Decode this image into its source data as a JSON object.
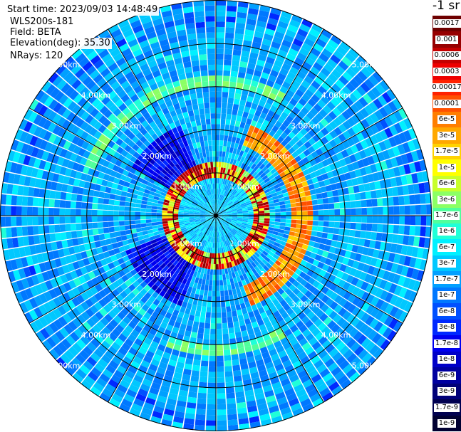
{
  "header": {
    "start_time": "Start time: 2023/09/03 14:48:49",
    "device": "WLS200s-181",
    "field": "Field: BETA",
    "elevation": "Elevation(deg): 35.30",
    "nrays": "NRays: 120"
  },
  "colorbar": {
    "title": "-1 sr",
    "levels": [
      {
        "label": "0.0017",
        "color": "#6e0000"
      },
      {
        "label": "0.001",
        "color": "#960000"
      },
      {
        "label": "0.0006",
        "color": "#c40000"
      },
      {
        "label": "0.0003",
        "color": "#ee0000"
      },
      {
        "label": "0.00017",
        "color": "#ff2200"
      },
      {
        "label": "0.0001",
        "color": "#ff5000"
      },
      {
        "label": "6e-5",
        "color": "#ff7e00"
      },
      {
        "label": "3e-5",
        "color": "#ffa800"
      },
      {
        "label": "1.7e-5",
        "color": "#ffd200"
      },
      {
        "label": "1e-5",
        "color": "#ffff00"
      },
      {
        "label": "6e-6",
        "color": "#c8ff2a"
      },
      {
        "label": "3e-6",
        "color": "#8cff64"
      },
      {
        "label": "1.7e-6",
        "color": "#50ff9c"
      },
      {
        "label": "1e-6",
        "color": "#20ffd8"
      },
      {
        "label": "6e-7",
        "color": "#00f0ff"
      },
      {
        "label": "3e-7",
        "color": "#00c8ff"
      },
      {
        "label": "1.7e-7",
        "color": "#00a0ff"
      },
      {
        "label": "1e-7",
        "color": "#0078ff"
      },
      {
        "label": "6e-8",
        "color": "#0050ff"
      },
      {
        "label": "3e-8",
        "color": "#0028ff"
      },
      {
        "label": "1.7e-8",
        "color": "#0000f0"
      },
      {
        "label": "1e-8",
        "color": "#0000c8"
      },
      {
        "label": "6e-9",
        "color": "#0000a0"
      },
      {
        "label": "3e-9",
        "color": "#000078"
      },
      {
        "label": "1.7e-9",
        "color": "#000050"
      },
      {
        "label": "1e-9",
        "color": "#000032"
      }
    ]
  },
  "chart_data": {
    "type": "heatmap",
    "projection": "polar",
    "field": "BETA",
    "nrays": 120,
    "max_range_km": 5.0,
    "range_ring_labels": [
      "1.00km",
      "2.00km",
      "3.00km",
      "4.00km",
      "5.00km"
    ],
    "range_rings_km": [
      1,
      2,
      3,
      4,
      5
    ],
    "aerosol_ring_km": 1.05,
    "inner_cloud_arc_km": 2.0,
    "outer_cloud_arc_km": 3.1,
    "background_level": "6e-8 to 3e-7",
    "grid": true
  }
}
